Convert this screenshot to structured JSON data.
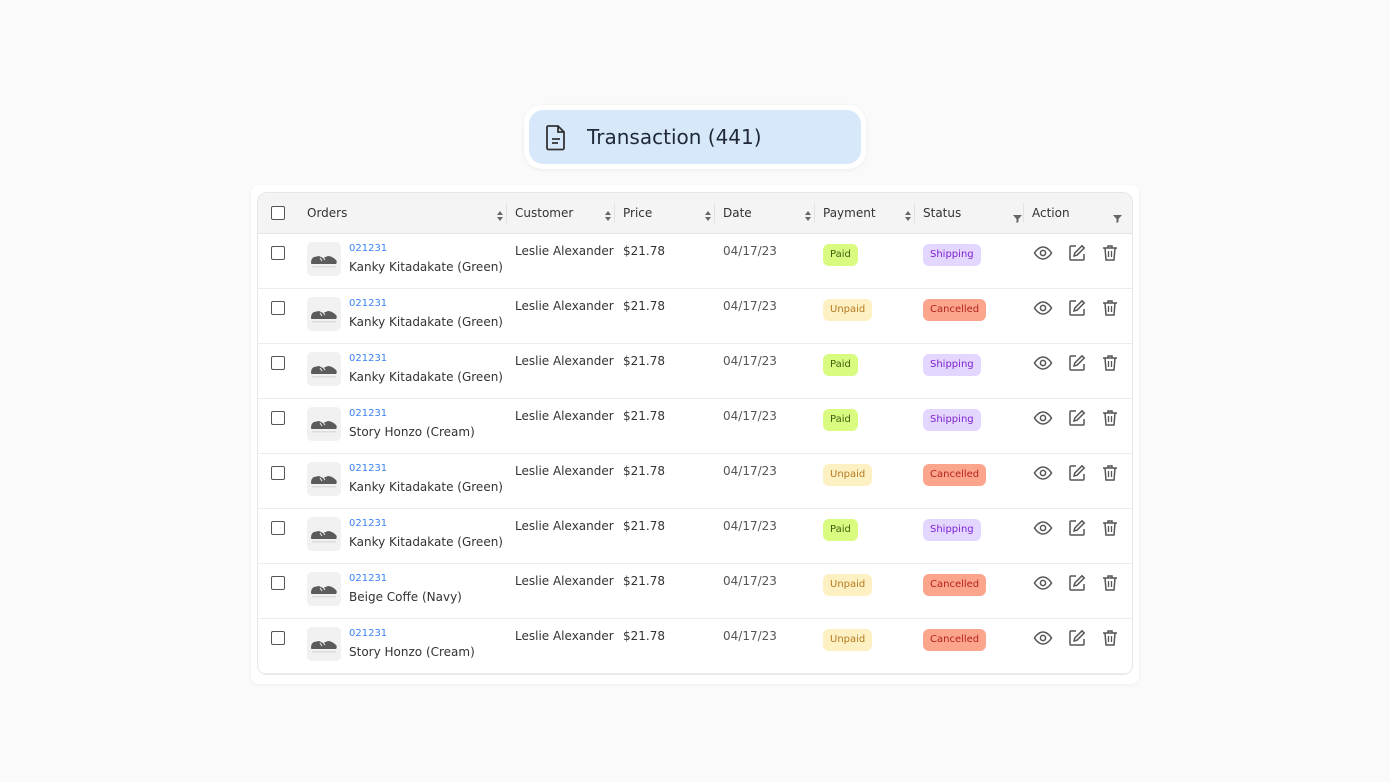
{
  "header": {
    "title": "Transaction (441)"
  },
  "table": {
    "columns": [
      "Orders",
      "Customer",
      "Price",
      "Date",
      "Payment",
      "Status",
      "Action"
    ],
    "rows": [
      {
        "order": "021231",
        "product": "Kanky Kitadakate (Green)",
        "customer": "Leslie Alexander",
        "price": "$21.78",
        "date": "04/17/23",
        "payment": "Paid",
        "payment_color": "green",
        "status": "Shipping",
        "status_color": "purple"
      },
      {
        "order": "021231",
        "product": "Kanky Kitadakate (Green)",
        "customer": "Leslie Alexander",
        "price": "$21.78",
        "date": "04/17/23",
        "payment": "Unpaid",
        "payment_color": "yellow",
        "status": "Cancelled",
        "status_color": "red"
      },
      {
        "order": "021231",
        "product": "Kanky Kitadakate (Green)",
        "customer": "Leslie Alexander",
        "price": "$21.78",
        "date": "04/17/23",
        "payment": "Paid",
        "payment_color": "green",
        "status": "Shipping",
        "status_color": "purple"
      },
      {
        "order": "021231",
        "product": "Story Honzo (Cream)",
        "customer": "Leslie Alexander",
        "price": "$21.78",
        "date": "04/17/23",
        "payment": "Paid",
        "payment_color": "green",
        "status": "Shipping",
        "status_color": "purple"
      },
      {
        "order": "021231",
        "product": "Kanky Kitadakate (Green)",
        "customer": "Leslie Alexander",
        "price": "$21.78",
        "date": "04/17/23",
        "payment": "Unpaid",
        "payment_color": "yellow",
        "status": "Cancelled",
        "status_color": "red"
      },
      {
        "order": "021231",
        "product": "Kanky Kitadakate (Green)",
        "customer": "Leslie Alexander",
        "price": "$21.78",
        "date": "04/17/23",
        "payment": "Paid",
        "payment_color": "green",
        "status": "Shipping",
        "status_color": "purple"
      },
      {
        "order": "021231",
        "product": "Beige Coffe (Navy)",
        "customer": "Leslie Alexander",
        "price": "$21.78",
        "date": "04/17/23",
        "payment": "Unpaid",
        "payment_color": "yellow",
        "status": "Cancelled",
        "status_color": "red"
      },
      {
        "order": "021231",
        "product": "Story Honzo (Cream)",
        "customer": "Leslie Alexander",
        "price": "$21.78",
        "date": "04/17/23",
        "payment": "Unpaid",
        "payment_color": "yellow",
        "status": "Cancelled",
        "status_color": "red"
      }
    ]
  }
}
